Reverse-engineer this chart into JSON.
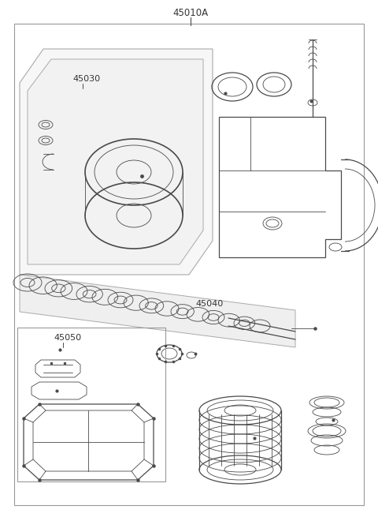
{
  "title": "45010A",
  "label_45030": "45030",
  "label_45040": "45040",
  "label_45050": "45050",
  "bg_color": "#ffffff",
  "line_color": "#4a4a4a",
  "text_color": "#333333",
  "fig_width": 4.8,
  "fig_height": 6.55,
  "dpi": 100
}
